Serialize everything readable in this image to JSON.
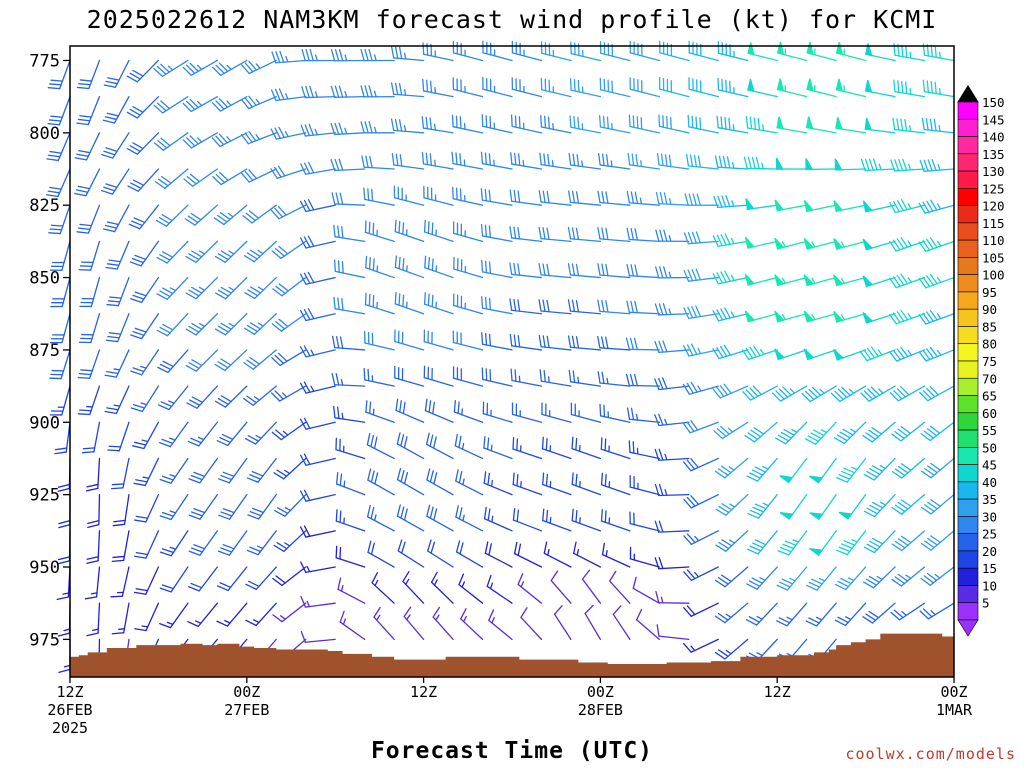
{
  "chart_data": {
    "type": "wind-barb-profile",
    "title": "2025022612 NAM3KM forecast wind profile (kt) for KCMI",
    "xlabel": "Forecast Time (UTC)",
    "ylabel": "",
    "x_ticks": [
      {
        "hour": 0,
        "lines": [
          "12Z",
          "26FEB",
          "2025"
        ]
      },
      {
        "hour": 12,
        "lines": [
          "00Z",
          "27FEB"
        ]
      },
      {
        "hour": 24,
        "lines": [
          "12Z"
        ]
      },
      {
        "hour": 36,
        "lines": [
          "00Z",
          "28FEB"
        ]
      },
      {
        "hour": 48,
        "lines": [
          "12Z"
        ]
      },
      {
        "hour": 60,
        "lines": [
          "00Z",
          "1MAR"
        ]
      }
    ],
    "xlim_hours": [
      0,
      60
    ],
    "y_ticks": [
      "775",
      "800",
      "825",
      "850",
      "875",
      "900",
      "925",
      "950",
      "975"
    ],
    "y_tick_values": [
      775,
      800,
      825,
      850,
      875,
      900,
      925,
      950,
      975
    ],
    "ylim_hPa": [
      770,
      988
    ],
    "pressure_levels": [
      775,
      787.5,
      800,
      812.5,
      825,
      837.5,
      850,
      862.5,
      875,
      887.5,
      900,
      912.5,
      925,
      937.5,
      950,
      962.5,
      975,
      987.5
    ],
    "terrain_surface_hPa": [
      [
        0,
        981
      ],
      [
        0.6,
        980.5
      ],
      [
        1.2,
        979.5
      ],
      [
        2.5,
        978
      ],
      [
        4.5,
        977
      ],
      [
        6,
        977
      ],
      [
        7.5,
        976.5
      ],
      [
        9,
        977
      ],
      [
        10,
        976.5
      ],
      [
        11.5,
        977.5
      ],
      [
        12.5,
        978
      ],
      [
        14,
        978.5
      ],
      [
        16,
        978.5
      ],
      [
        17.5,
        979
      ],
      [
        18.5,
        980
      ],
      [
        20.5,
        981
      ],
      [
        22,
        982
      ],
      [
        25.5,
        981
      ],
      [
        28.5,
        981
      ],
      [
        30.5,
        982
      ],
      [
        33.5,
        982
      ],
      [
        34.5,
        983
      ],
      [
        36.5,
        983.5
      ],
      [
        39.5,
        983.5
      ],
      [
        40.5,
        983
      ],
      [
        43.5,
        982.5
      ],
      [
        45.5,
        981
      ],
      [
        48,
        980.5
      ],
      [
        50,
        980.5
      ],
      [
        50.5,
        979.5
      ],
      [
        51.5,
        978.5
      ],
      [
        52,
        977
      ],
      [
        53,
        976
      ],
      [
        54,
        975
      ],
      [
        55,
        973
      ],
      [
        56,
        973
      ],
      [
        59,
        973
      ],
      [
        59.2,
        974
      ],
      [
        60,
        974
      ]
    ],
    "wind_field": {
      "sample_hours": [
        0,
        2,
        4,
        6,
        8,
        10,
        12,
        14,
        16,
        18,
        20,
        22,
        24,
        26,
        28,
        30,
        32,
        34,
        36,
        38,
        40,
        42,
        44,
        46,
        48,
        50,
        52,
        54,
        56,
        58,
        60
      ],
      "sample_levels_hPa": [
        775,
        787.5,
        800,
        812.5,
        825,
        837.5,
        850,
        862.5,
        875,
        887.5,
        900,
        912.5,
        925,
        937.5,
        950,
        962.5,
        975
      ],
      "barbs": [
        {
          "hour": 0,
          "level": 775,
          "dir": 200,
          "spd": 30
        },
        {
          "hour": 12,
          "level": 775,
          "dir": 240,
          "spd": 35
        },
        {
          "hour": 18,
          "level": 775,
          "dir": 270,
          "spd": 35
        },
        {
          "hour": 30,
          "level": 775,
          "dir": 285,
          "spd": 35
        },
        {
          "hour": 42,
          "level": 775,
          "dir": 285,
          "spd": 40
        },
        {
          "hour": 52,
          "level": 775,
          "dir": 285,
          "spd": 55
        },
        {
          "hour": 60,
          "level": 775,
          "dir": 280,
          "spd": 45
        },
        {
          "hour": 0,
          "level": 850,
          "dir": 195,
          "spd": 30
        },
        {
          "hour": 12,
          "level": 850,
          "dir": 225,
          "spd": 35
        },
        {
          "hour": 24,
          "level": 850,
          "dir": 290,
          "spd": 35
        },
        {
          "hour": 36,
          "level": 850,
          "dir": 275,
          "spd": 30
        },
        {
          "hour": 52,
          "level": 850,
          "dir": 255,
          "spd": 55
        },
        {
          "hour": 60,
          "level": 850,
          "dir": 250,
          "spd": 45
        },
        {
          "hour": 0,
          "level": 925,
          "dir": 180,
          "spd": 20
        },
        {
          "hour": 12,
          "level": 925,
          "dir": 215,
          "spd": 30
        },
        {
          "hour": 24,
          "level": 925,
          "dir": 300,
          "spd": 30
        },
        {
          "hour": 36,
          "level": 925,
          "dir": 290,
          "spd": 25
        },
        {
          "hour": 52,
          "level": 925,
          "dir": 215,
          "spd": 50
        },
        {
          "hour": 60,
          "level": 925,
          "dir": 230,
          "spd": 40
        },
        {
          "hour": 0,
          "level": 975,
          "dir": 180,
          "spd": 15
        },
        {
          "hour": 12,
          "level": 975,
          "dir": 220,
          "spd": 15
        },
        {
          "hour": 24,
          "level": 975,
          "dir": 320,
          "spd": 15
        },
        {
          "hour": 36,
          "level": 975,
          "dir": 330,
          "spd": 10
        },
        {
          "hour": 52,
          "level": 975,
          "dir": 220,
          "spd": 25
        },
        {
          "hour": 60,
          "level": 975,
          "dir": 240,
          "spd": 25
        }
      ]
    },
    "colorbar": {
      "unit": "kt",
      "levels": [
        5,
        10,
        15,
        20,
        25,
        30,
        35,
        40,
        45,
        50,
        55,
        60,
        65,
        70,
        75,
        80,
        85,
        90,
        95,
        100,
        105,
        110,
        115,
        120,
        125,
        130,
        135,
        140,
        145,
        150
      ],
      "colors": [
        "#9b30ff",
        "#5a2be2",
        "#2020dd",
        "#1e46e6",
        "#2563eb",
        "#2e86ee",
        "#2fa0f0",
        "#18b8ef",
        "#10d6d0",
        "#18e8b0",
        "#20e070",
        "#2ed63a",
        "#5ee12a",
        "#a8ee2a",
        "#e8f21e",
        "#f5f51f",
        "#f5dc1e",
        "#f5c51e",
        "#f5a81e",
        "#f08c1e",
        "#e8781e",
        "#e8621e",
        "#ea4d1e",
        "#ec2a1a",
        "#ff0000",
        "#ff1a4a",
        "#ff2870",
        "#ff2aa0",
        "#ff20d0",
        "#ff00ff"
      ]
    }
  },
  "credit": "coolwx.com/models",
  "colors": {
    "terrain": "#a0522d",
    "frame": "#000000",
    "background": "#ffffff"
  }
}
